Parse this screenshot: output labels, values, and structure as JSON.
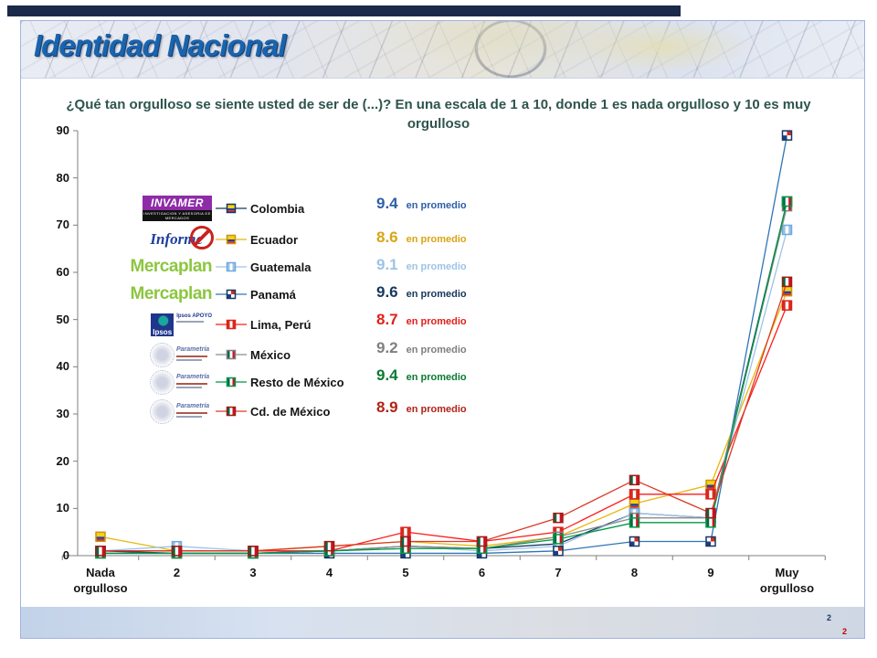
{
  "slide": {
    "title": "Identidad Nacional",
    "footer_numbers": [
      "2",
      "2"
    ]
  },
  "chart_data": {
    "type": "line",
    "title": "¿Qué tan orgulloso se siente usted de ser de (...)? En una escala de 1 a 10, donde 1 es nada orgulloso y 10 es muy orgulloso",
    "categories": [
      "Nada orgulloso",
      "2",
      "3",
      "4",
      "5",
      "6",
      "7",
      "8",
      "9",
      "Muy orgulloso"
    ],
    "xlabel": "",
    "ylabel": "",
    "ylim": [
      0,
      90
    ],
    "ytick_step": 10,
    "grid": false,
    "legend_position": "inside-upper-left",
    "average_suffix": "en promedio",
    "series": [
      {
        "name": "Colombia",
        "logo": {
          "type": "invamer",
          "name": "INVAMER",
          "subtext": "INVESTIGACION Y ASESORIA DE MERCADOS"
        },
        "line_color": "#17375E",
        "marker": {
          "shape": "h-stripes",
          "colors": [
            "#F7D117",
            "#2A3D9B",
            "#D52B1E"
          ],
          "border": "#17375E"
        },
        "average": "9.4",
        "average_color": "#2E5FA8",
        "values": [
          1,
          0.5,
          0.5,
          1,
          2,
          1.5,
          2.5,
          9,
          8,
          75
        ]
      },
      {
        "name": "Ecuador",
        "logo": {
          "type": "informe",
          "name": "Informe"
        },
        "line_color": "#E8B70A",
        "marker": {
          "shape": "h-stripes",
          "colors": [
            "#F7D117",
            "#2A3D9B",
            "#D52B1E"
          ],
          "border": "#C8960C"
        },
        "average": "8.6",
        "average_color": "#D9A514",
        "values": [
          4,
          1,
          1,
          2,
          3,
          2,
          4,
          11,
          15,
          56
        ]
      },
      {
        "name": "Guatemala",
        "logo": {
          "type": "mercaplan",
          "name": "Mercaplan"
        },
        "line_color": "#9DC3E6",
        "marker": {
          "shape": "v-stripes",
          "colors": [
            "#9DC3E6",
            "#FFFFFF",
            "#9DC3E6"
          ],
          "border": "#6FA8DC"
        },
        "average": "9.1",
        "average_color": "#9DC3E6",
        "values": [
          1,
          2,
          1,
          1,
          2,
          1,
          2,
          9,
          8,
          69
        ]
      },
      {
        "name": "Panamá",
        "logo": {
          "type": "mercaplan",
          "name": "Mercaplan"
        },
        "line_color": "#2E75B6",
        "marker": {
          "shape": "quarters",
          "colors": [
            "#FFFFFF",
            "#D52B1E",
            "#1A3E8C",
            "#FFFFFF"
          ],
          "border": "#17375E"
        },
        "average": "9.6",
        "average_color": "#17375E",
        "values": [
          0.5,
          0.5,
          0.5,
          0.5,
          0.5,
          0.5,
          1,
          3,
          3,
          89
        ]
      },
      {
        "name": "Lima, Perú",
        "logo": {
          "type": "ipsos",
          "name": "Ipsos",
          "subtext": "Ipsos APOYO"
        },
        "line_color": "#FF1A1A",
        "marker": {
          "shape": "v-stripes",
          "colors": [
            "#D52B1E",
            "#FFFFFF",
            "#D52B1E"
          ],
          "border": "#E0201A"
        },
        "average": "8.7",
        "average_color": "#E0201A",
        "values": [
          1,
          1,
          1,
          1,
          5,
          3,
          5,
          13,
          13,
          53
        ]
      },
      {
        "name": "México",
        "logo": {
          "type": "parametria",
          "name": "Parametría"
        },
        "line_color": "#8C8C8C",
        "marker": {
          "shape": "v-stripes",
          "colors": [
            "#006847",
            "#FFFFFF",
            "#CE1126"
          ],
          "border": "#7F7F7F"
        },
        "average": "9.2",
        "average_color": "#7F7F7F",
        "values": [
          0.5,
          0.5,
          0.5,
          1,
          2,
          1.5,
          4,
          8,
          8,
          74
        ]
      },
      {
        "name": "Resto de México",
        "logo": {
          "type": "parametria",
          "name": "Parametría"
        },
        "line_color": "#009944",
        "marker": {
          "shape": "v-stripes",
          "colors": [
            "#006847",
            "#FFFFFF",
            "#CE1126"
          ],
          "border": "#009944"
        },
        "average": "9.4",
        "average_color": "#0A7A33",
        "values": [
          0.5,
          0.5,
          0.5,
          1,
          1.5,
          1.5,
          3.5,
          7,
          7,
          75
        ]
      },
      {
        "name": "Cd. de México",
        "logo": {
          "type": "parametria",
          "name": "Parametría"
        },
        "line_color": "#D93A26",
        "marker": {
          "shape": "v-stripes",
          "colors": [
            "#006847",
            "#FFFFFF",
            "#CE1126"
          ],
          "border": "#9E1B14"
        },
        "average": "8.9",
        "average_color": "#B02418",
        "values": [
          1,
          1,
          1,
          2,
          3,
          3,
          8,
          16,
          9,
          58
        ]
      }
    ]
  }
}
